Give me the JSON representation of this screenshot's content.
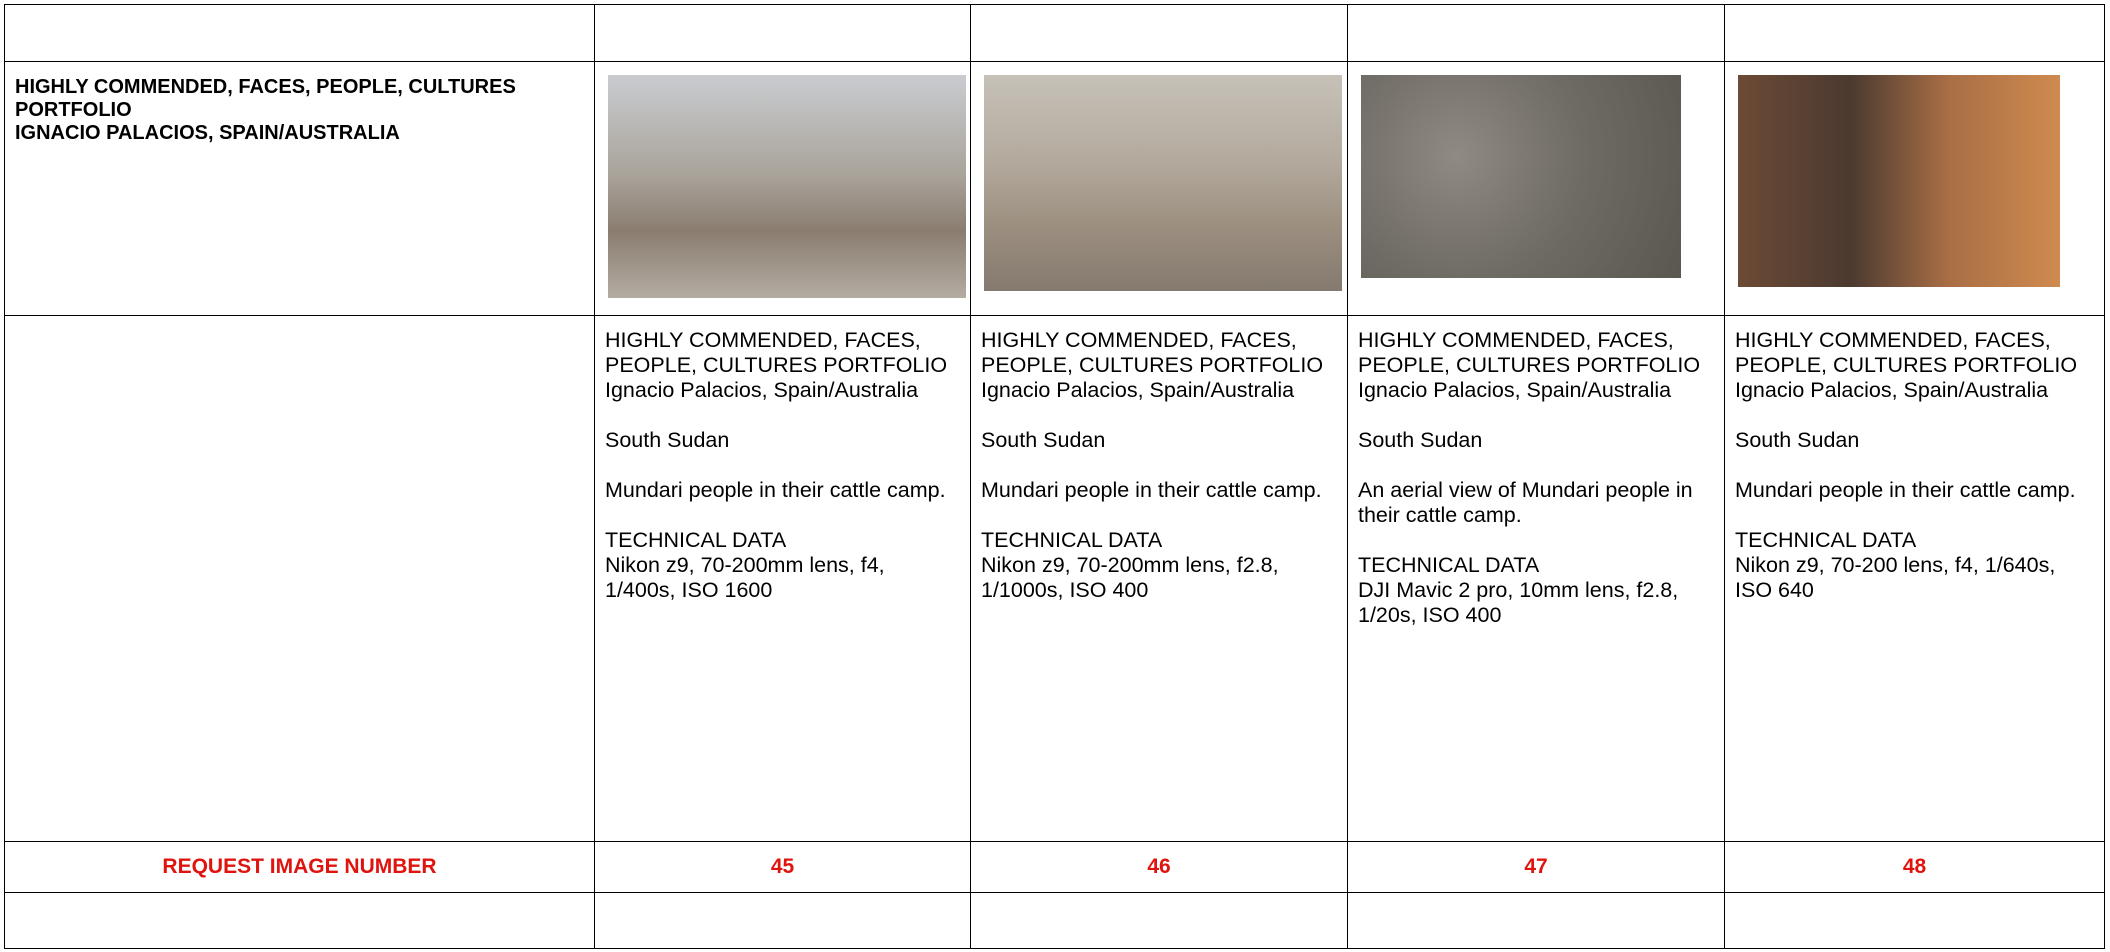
{
  "header": {
    "category": "HIGHLY COMMENDED, FACES, PEOPLE, CULTURES PORTFOLIO",
    "photographer": "IGNACIO PALACIOS, SPAIN/AUSTRALIA"
  },
  "entries": [
    {
      "title": "HIGHLY COMMENDED, FACES, PEOPLE, CULTURES PORTFOLIO",
      "credit": "Ignacio Palacios, Spain/Australia",
      "location": "South Sudan",
      "caption": "Mundari people in their cattle camp.",
      "technical_label": "TECHNICAL DATA",
      "technical_data": "Nikon z9, 70-200mm lens, f4, 1/400s, ISO 1600"
    },
    {
      "title": "HIGHLY COMMENDED, FACES, PEOPLE, CULTURES PORTFOLIO",
      "credit": "Ignacio Palacios, Spain/Australia",
      "location": "South Sudan",
      "caption": "Mundari people in their cattle camp.",
      "technical_label": "TECHNICAL DATA",
      "technical_data": "Nikon z9, 70-200mm lens, f2.8, 1/1000s, ISO 400"
    },
    {
      "title": "HIGHLY COMMENDED, FACES, PEOPLE, CULTURES PORTFOLIO",
      "credit": "Ignacio Palacios, Spain/Australia",
      "location": "South Sudan",
      "caption": "An aerial view of Mundari people in their cattle camp.",
      "technical_label": "TECHNICAL DATA",
      "technical_data": "DJI Mavic 2 pro, 10mm lens, f2.8, 1/20s, ISO 400"
    },
    {
      "title": "HIGHLY COMMENDED, FACES, PEOPLE, CULTURES PORTFOLIO",
      "credit": "Ignacio Palacios, Spain/Australia",
      "location": "South Sudan",
      "caption": "Mundari people in their cattle camp.",
      "technical_label": "TECHNICAL DATA",
      "technical_data": "Nikon z9, 70-200 lens, f4, 1/640s, ISO 640"
    }
  ],
  "request": {
    "label": "REQUEST IMAGE NUMBER",
    "numbers": [
      45,
      46,
      47,
      48
    ]
  }
}
